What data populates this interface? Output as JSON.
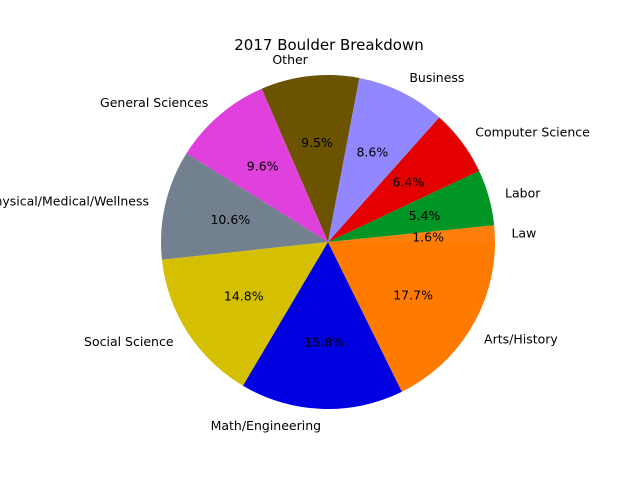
{
  "chart_data": {
    "type": "pie",
    "title": "2017 Boulder Breakdown",
    "slices": [
      {
        "label": "Law",
        "value": 1.6,
        "pct_label": "1.6%",
        "color": "#ff7f0e"
      },
      {
        "label": "Labor",
        "value": 5.4,
        "pct_label": "5.4%",
        "color": "#009525"
      },
      {
        "label": "Computer Science",
        "value": 6.4,
        "pct_label": "6.4%",
        "color": "#e40000"
      },
      {
        "label": "Business",
        "value": 8.6,
        "pct_label": "8.6%",
        "color": "#9187ff"
      },
      {
        "label": "Other",
        "value": 9.5,
        "pct_label": "9.5%",
        "color": "#6b5300"
      },
      {
        "label": "General Sciences",
        "value": 9.6,
        "pct_label": "9.6%",
        "color": "#e040db"
      },
      {
        "label": "Physical/Medical/Wellness",
        "value": 10.6,
        "pct_label": "10.6%",
        "color": "#72808f"
      },
      {
        "label": "Social Science",
        "value": 14.8,
        "pct_label": "14.8%",
        "color": "#d4c000"
      },
      {
        "label": "Math/Engineering",
        "value": 15.8,
        "pct_label": "15.8%",
        "color": "#0000e0"
      },
      {
        "label": "Arts/History",
        "value": 17.7,
        "pct_label": "17.7%",
        "color": "#ff7b00"
      }
    ],
    "start_angle_deg": 0,
    "direction": "counterclockwise"
  }
}
